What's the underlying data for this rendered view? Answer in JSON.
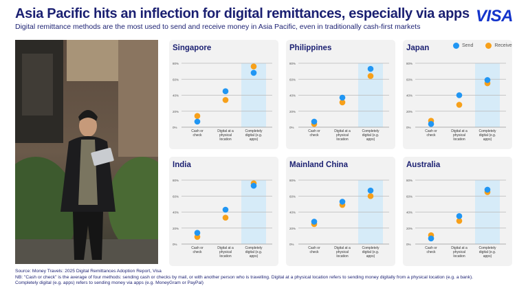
{
  "header": {
    "title": "Asia Pacific hits an inflection for digital remittances, especially via apps",
    "subtitle": "Digital remittance methods are the most used to send and receive money in Asia Pacific, even in traditionally cash-first markets",
    "logo": "VISA"
  },
  "legend": {
    "send": "Send",
    "receive": "Receive"
  },
  "colors": {
    "send": "#2196f3",
    "receive": "#f7a01a",
    "highlight": "#d6ebf8",
    "title": "#1a1f71"
  },
  "footer": {
    "source": "Source: Money Travels: 2025 Digital Remittances Adoption Report, Visa",
    "note1": "NB: \"Cash or check\" is the average of four methods: sending cash or checks by mail, or with another person who is travelling. Digital at a physical location refers to sending money digitally from a physical location (e.g. a bank).",
    "note2": "Completely digital (e.g. apps) refers to sending money via apps (e.g. MoneyGram or PayPal)"
  },
  "chart_data": [
    {
      "type": "scatter",
      "title": "Singapore",
      "categories": [
        "Cash or check",
        "Digital at a physical location",
        "Completely digital (e.g. apps)"
      ],
      "yticks": [
        "0%",
        "20%",
        "40%",
        "60%",
        "80%"
      ],
      "ylim": [
        0,
        80
      ],
      "grid": true,
      "highlight_category": "Completely digital (e.g. apps)",
      "series": [
        {
          "name": "Send",
          "values": [
            7,
            45,
            68
          ]
        },
        {
          "name": "Receive",
          "values": [
            14,
            34,
            76
          ]
        }
      ]
    },
    {
      "type": "scatter",
      "title": "Philippines",
      "categories": [
        "Cash or check",
        "Digital at a physical location",
        "Completely digital (e.g. apps)"
      ],
      "yticks": [
        "0%",
        "20%",
        "40%",
        "60%",
        "80%"
      ],
      "ylim": [
        0,
        80
      ],
      "grid": true,
      "highlight_category": "Completely digital (e.g. apps)",
      "series": [
        {
          "name": "Send",
          "values": [
            7,
            37,
            73
          ]
        },
        {
          "name": "Receive",
          "values": [
            4,
            31,
            64
          ]
        }
      ]
    },
    {
      "type": "scatter",
      "title": "Japan",
      "categories": [
        "Cash or check",
        "Digital at a physical location",
        "Completely digital (e.g. apps)"
      ],
      "yticks": [
        "0%",
        "20%",
        "40%",
        "60%",
        "80%"
      ],
      "ylim": [
        0,
        80
      ],
      "grid": true,
      "legend": "top-right",
      "highlight_category": "Completely digital (e.g. apps)",
      "series": [
        {
          "name": "Send",
          "values": [
            4,
            40,
            59
          ]
        },
        {
          "name": "Receive",
          "values": [
            8,
            28,
            55
          ]
        }
      ]
    },
    {
      "type": "scatter",
      "title": "India",
      "categories": [
        "Cash or check",
        "Digital at a physical location",
        "Completely digital (e.g. apps)"
      ],
      "yticks": [
        "0%",
        "20%",
        "40%",
        "60%",
        "80%"
      ],
      "ylim": [
        0,
        80
      ],
      "grid": true,
      "highlight_category": "Completely digital (e.g. apps)",
      "series": [
        {
          "name": "Send",
          "values": [
            14,
            43,
            73
          ]
        },
        {
          "name": "Receive",
          "values": [
            9,
            33,
            76
          ]
        }
      ]
    },
    {
      "type": "scatter",
      "title": "Mainland China",
      "categories": [
        "Cash or check",
        "Digital at a physical location",
        "Completely digital (e.g. apps)"
      ],
      "yticks": [
        "0%",
        "20%",
        "40%",
        "60%",
        "80%"
      ],
      "ylim": [
        0,
        80
      ],
      "grid": true,
      "highlight_category": "Completely digital (e.g. apps)",
      "series": [
        {
          "name": "Send",
          "values": [
            28,
            53,
            67
          ]
        },
        {
          "name": "Receive",
          "values": [
            25,
            49,
            60
          ]
        }
      ]
    },
    {
      "type": "scatter",
      "title": "Australia",
      "categories": [
        "Cash or check",
        "Digital at a physical location",
        "Completely digital (e.g. apps)"
      ],
      "yticks": [
        "0%",
        "20%",
        "40%",
        "60%",
        "80%"
      ],
      "ylim": [
        0,
        80
      ],
      "grid": true,
      "highlight_category": "Completely digital (e.g. apps)",
      "series": [
        {
          "name": "Send",
          "values": [
            7,
            35,
            68
          ]
        },
        {
          "name": "Receive",
          "values": [
            11,
            29,
            65
          ]
        }
      ]
    }
  ]
}
